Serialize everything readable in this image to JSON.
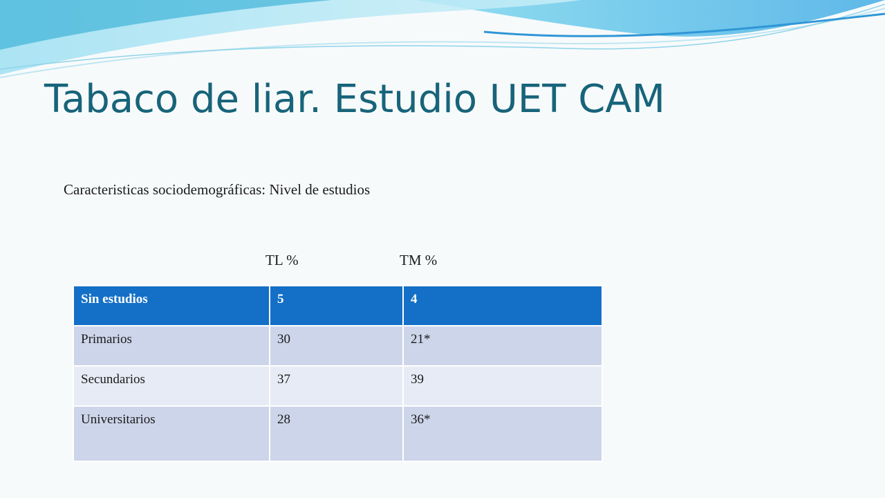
{
  "slide": {
    "title": "Tabaco de liar. Estudio UET CAM",
    "subtitle": "Caracteristicas sociodemográficas: Nivel de estudios",
    "column_headers": [
      "TL %",
      "TM %"
    ]
  },
  "table": {
    "rows": [
      {
        "label": "Sin estudios",
        "tl": "5",
        "tm": "4"
      },
      {
        "label": "Primarios",
        "tl": "30",
        "tm": "21*"
      },
      {
        "label": "Secundarios",
        "tl": "37",
        "tm": "39"
      },
      {
        "label": "Universitarios",
        "tl": "28",
        "tm": "36*"
      }
    ]
  },
  "colors": {
    "title": "#17647a",
    "header_row": "#1470c6",
    "row_odd": "#cdd5ea",
    "row_even": "#e7ebf5",
    "wave": "#4fc3e8"
  }
}
